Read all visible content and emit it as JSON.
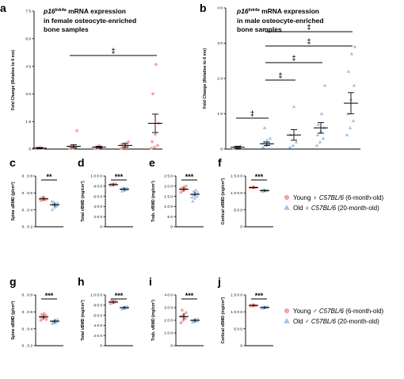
{
  "colors": {
    "young": "#f4a6a6",
    "old": "#9ec3ea",
    "axis": "#000000"
  },
  "legend": {
    "female": {
      "young": {
        "prefix": "Young ♀ ",
        "strain": "C57BL/6",
        "age": " (6-month-old)"
      },
      "old": {
        "prefix": "Old ♀ ",
        "strain": "C57BL/6",
        "age": " (20-month-old)"
      }
    },
    "male": {
      "young": {
        "prefix": "Young ♂ ",
        "strain": "C57BL/6",
        "age": " (6-month-old)"
      },
      "old": {
        "prefix": "Old ♂ ",
        "strain": "C57BL/6",
        "age": " (20-month-old)"
      }
    }
  },
  "chart_data": [
    {
      "panel": "a",
      "type": "scatter",
      "title_gene": "p16",
      "title_sup": "Ink4a",
      "title_rest": " mRNA expression",
      "title_lines": [
        "in female osteocyte-enriched",
        "bone samples"
      ],
      "ylabel": "Fold Change (Relative to 6 mo)",
      "yticks": [
        "0",
        "1 5",
        "3 0",
        "4 5",
        "6 0",
        "7 5"
      ],
      "ylim": [
        0,
        75
      ],
      "groups": [
        {
          "mean": 0.5,
          "sem": 0.3,
          "points": [
            0.2,
            0.3,
            0.5,
            0.6,
            0.8,
            0.4
          ]
        },
        {
          "mean": 1.5,
          "sem": 0.8,
          "points": [
            0.3,
            0.6,
            1,
            1.5,
            2,
            10
          ]
        },
        {
          "mean": 1,
          "sem": 0.5,
          "points": [
            0.3,
            0.5,
            1,
            1.2,
            1.8
          ]
        },
        {
          "mean": 2,
          "sem": 1,
          "points": [
            0.5,
            1,
            1.5,
            2.5,
            3,
            4
          ]
        },
        {
          "mean": 14,
          "sem": 5,
          "points": [
            0.5,
            1,
            2,
            4,
            8,
            14,
            30,
            46
          ]
        }
      ],
      "brackets": [
        {
          "from": 1,
          "to": 4,
          "y": 55,
          "label": "‡"
        }
      ]
    },
    {
      "panel": "b",
      "type": "scatter",
      "title_gene": "p16",
      "title_sup": "Ink4a",
      "title_rest": " mRNA expression",
      "title_lines": [
        "in male osteocyte-enriched",
        "bone samples"
      ],
      "ylabel": "Fold Change (Relative to 6 mo)",
      "yticks": [
        "0",
        "1 0",
        "2 0",
        "3 0",
        "4 0"
      ],
      "ylim": [
        0,
        40
      ],
      "groups": [
        {
          "mean": 0.5,
          "sem": 0.3,
          "points": [
            0.3,
            0.5,
            0.7,
            0.5,
            0.6,
            0.8
          ]
        },
        {
          "mean": 1.5,
          "sem": 0.5,
          "points": [
            0.5,
            1,
            1.5,
            2,
            2.5,
            3,
            6
          ]
        },
        {
          "mean": 4,
          "sem": 1.5,
          "points": [
            0.5,
            1,
            2,
            4,
            12
          ]
        },
        {
          "mean": 6,
          "sem": 1.5,
          "points": [
            1,
            2,
            3,
            4,
            5,
            6,
            7,
            10,
            18
          ]
        },
        {
          "mean": 13,
          "sem": 3,
          "points": [
            4,
            6,
            8,
            10,
            14,
            18,
            22,
            27,
            29
          ]
        }
      ],
      "brackets": [
        {
          "from": 0,
          "to": 1,
          "y": 11,
          "label": "‡"
        },
        {
          "from": 1,
          "to": 2,
          "y": 22,
          "label": "‡"
        },
        {
          "from": 1,
          "to": 3,
          "y": 28,
          "label": "‡"
        },
        {
          "from": 1,
          "to": 4,
          "y": 34,
          "label": "‡"
        },
        {
          "from": 1,
          "to": 5,
          "y": 40,
          "label": "‡"
        }
      ]
    },
    {
      "panel": "c",
      "type": "scatter",
      "ylabel": "Spine aBMD (g/cm²)",
      "yticks": [
        "0 . 0 2",
        "0 . 0 4",
        "0 . 0 6",
        "0 . 0 8"
      ],
      "yvals": [
        0.02,
        0.04,
        0.06,
        0.08
      ],
      "ylim": [
        0.02,
        0.08
      ],
      "sig": "**",
      "young": {
        "mean": 0.053,
        "sem": 0.001,
        "points": [
          0.051,
          0.052,
          0.053,
          0.054,
          0.055,
          0.052,
          0.054
        ]
      },
      "old": {
        "mean": 0.046,
        "sem": 0.001,
        "points": [
          0.04,
          0.043,
          0.045,
          0.046,
          0.047,
          0.048,
          0.049,
          0.044,
          0.05
        ]
      }
    },
    {
      "panel": "d",
      "type": "scatter",
      "ylabel": "Total vBMD (mg/cm³)",
      "yticks": [
        "0",
        "2 0 0",
        "4 0 0",
        "6 0 0",
        "8 0 0",
        "1 0 0 0"
      ],
      "yvals": [
        0,
        200,
        400,
        600,
        800,
        1000
      ],
      "ylim": [
        0,
        1000
      ],
      "sig": "***",
      "young": {
        "mean": 830,
        "sem": 8,
        "points": [
          815,
          825,
          830,
          835,
          840,
          845,
          820
        ]
      },
      "old": {
        "mean": 740,
        "sem": 10,
        "points": [
          700,
          715,
          730,
          740,
          750,
          760,
          770,
          725,
          745
        ]
      }
    },
    {
      "panel": "e",
      "type": "scatter",
      "ylabel": "Trab. vBMD (mg/cm³)",
      "yticks": [
        "0",
        "5 0",
        "1 0 0",
        "1 5 0",
        "2 0 0",
        "2 5 0"
      ],
      "yvals": [
        0,
        50,
        100,
        150,
        200,
        250
      ],
      "ylim": [
        0,
        250
      ],
      "sig": "***",
      "young": {
        "mean": 185,
        "sem": 5,
        "points": [
          170,
          178,
          185,
          190,
          195,
          200,
          180
        ]
      },
      "old": {
        "mean": 160,
        "sem": 6,
        "points": [
          125,
          140,
          150,
          158,
          162,
          168,
          175,
          180,
          145
        ]
      }
    },
    {
      "panel": "f",
      "type": "scatter",
      "ylabel": "Cortical vBMD (mg/cm³)",
      "yticks": [
        "0",
        "5 0 0",
        "1 0 0 0",
        "1 5 0 0"
      ],
      "yvals": [
        0,
        500,
        1000,
        1500
      ],
      "ylim": [
        0,
        1500
      ],
      "sig": "***",
      "young": {
        "mean": 1160,
        "sem": 5,
        "points": [
          1150,
          1155,
          1160,
          1165,
          1170,
          1158,
          1162
        ]
      },
      "old": {
        "mean": 1070,
        "sem": 6,
        "points": [
          1040,
          1055,
          1065,
          1070,
          1075,
          1085,
          1090,
          1060,
          1080
        ]
      }
    },
    {
      "panel": "g",
      "type": "scatter",
      "ylabel": "Spine aBMD (g/cm²)",
      "yticks": [
        "0 . 0 2",
        "0 . 0 4",
        "0 . 0 6",
        "0 . 0 8"
      ],
      "yvals": [
        0.02,
        0.04,
        0.06,
        0.08
      ],
      "ylim": [
        0.02,
        0.08
      ],
      "sig": "***",
      "young": {
        "mean": 0.054,
        "sem": 0.001,
        "points": [
          0.05,
          0.052,
          0.053,
          0.054,
          0.055,
          0.056,
          0.057,
          0.058,
          0.051
        ]
      },
      "old": {
        "mean": 0.049,
        "sem": 0.001,
        "points": [
          0.046,
          0.047,
          0.048,
          0.049,
          0.05,
          0.051,
          0.048,
          0.049
        ]
      }
    },
    {
      "panel": "h",
      "type": "scatter",
      "ylabel": "Total vBMD (mg/cm³)",
      "yticks": [
        "0",
        "2 0 0",
        "4 0 0",
        "6 0 0",
        "8 0 0",
        "1 0 0 0"
      ],
      "yvals": [
        0,
        200,
        400,
        600,
        800,
        1000
      ],
      "ylim": [
        0,
        1000
      ],
      "sig": "***",
      "young": {
        "mean": 860,
        "sem": 8,
        "points": [
          830,
          845,
          855,
          860,
          870,
          880,
          890,
          850
        ]
      },
      "old": {
        "mean": 750,
        "sem": 8,
        "points": [
          720,
          730,
          740,
          750,
          760,
          770,
          745,
          755
        ]
      }
    },
    {
      "panel": "i",
      "type": "scatter",
      "ylabel": "Trab. vBMD (mg/cm³)",
      "yticks": [
        "0",
        "1 0 0",
        "2 0 0",
        "3 0 0",
        "4 0 0"
      ],
      "yvals": [
        0,
        100,
        200,
        300,
        400
      ],
      "ylim": [
        0,
        400
      ],
      "sig": "***",
      "young": {
        "mean": 230,
        "sem": 15,
        "points": [
          180,
          200,
          215,
          230,
          245,
          260,
          280,
          220
        ]
      },
      "old": {
        "mean": 200,
        "sem": 5,
        "points": [
          185,
          190,
          195,
          200,
          205,
          210,
          198,
          202
        ]
      }
    },
    {
      "panel": "j",
      "type": "scatter",
      "ylabel": "Cortical vBMD (mg/cm³)",
      "yticks": [
        "0",
        "5 0 0",
        "1 0 0 0",
        "1 5 0 0"
      ],
      "yvals": [
        0,
        500,
        1000,
        1500
      ],
      "ylim": [
        0,
        1500
      ],
      "sig": "***",
      "young": {
        "mean": 1190,
        "sem": 8,
        "points": [
          1170,
          1180,
          1190,
          1200,
          1210,
          1185,
          1195
        ]
      },
      "old": {
        "mean": 1130,
        "sem": 8,
        "points": [
          1100,
          1115,
          1125,
          1130,
          1140,
          1150,
          1120,
          1135
        ]
      }
    }
  ]
}
